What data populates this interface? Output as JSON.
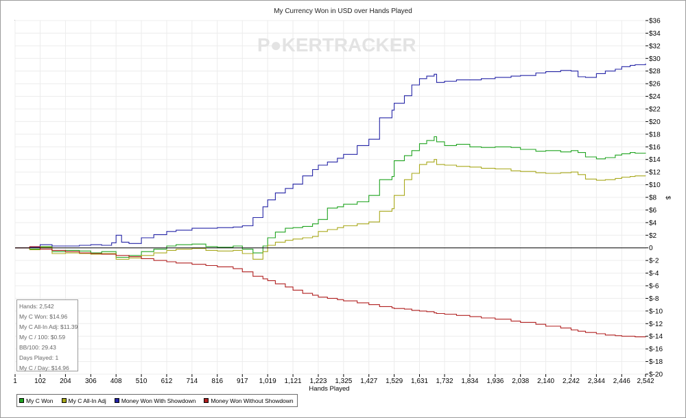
{
  "window": {},
  "watermark": {
    "text_a": "P",
    "text_b": "KERTRACKER",
    "color": "#e3e3e3"
  },
  "stats": [
    "Hands: 2,542",
    "My C Won: $14.96",
    "My C All-In Adj: $11.39",
    "My C / 100: $0.59",
    "BB/100: 29.43",
    "Days Played: 1",
    "My C / Day: $14.96"
  ],
  "chart_data": {
    "type": "line",
    "title": "My Currency Won in USD over Hands Played",
    "xlabel": "Hands Played",
    "ylabel": "$",
    "xlim": [
      1,
      2542
    ],
    "ylim": [
      -20,
      36
    ],
    "x_ticks": [
      "1",
      "102",
      "204",
      "306",
      "408",
      "510",
      "612",
      "714",
      "816",
      "917",
      "1,019",
      "1,121",
      "1,223",
      "1,325",
      "1,427",
      "1,529",
      "1,631",
      "1,732",
      "1,834",
      "1,936",
      "2,038",
      "2,140",
      "2,242",
      "2,344",
      "2,446",
      "2,542"
    ],
    "x_tick_values": [
      1,
      102,
      204,
      306,
      408,
      510,
      612,
      714,
      816,
      917,
      1019,
      1121,
      1223,
      1325,
      1427,
      1529,
      1631,
      1732,
      1834,
      1936,
      2038,
      2140,
      2242,
      2344,
      2446,
      2542
    ],
    "y_ticks": [
      "$36",
      "$34",
      "$32",
      "$30",
      "$28",
      "$26",
      "$24",
      "$22",
      "$20",
      "$18",
      "$16",
      "$14",
      "$12",
      "$10",
      "$8",
      "$6",
      "$4",
      "$2",
      "0",
      "$-2",
      "$-4",
      "$-6",
      "$-8",
      "$-10",
      "$-12",
      "$-14",
      "$-16",
      "$-18",
      "$-20"
    ],
    "y_tick_values": [
      36,
      34,
      32,
      30,
      28,
      26,
      24,
      22,
      20,
      18,
      16,
      14,
      12,
      10,
      8,
      6,
      4,
      2,
      0,
      -2,
      -4,
      -6,
      -8,
      -10,
      -12,
      -14,
      -16,
      -18,
      -20
    ],
    "grid": true,
    "legend_position": "bottom-left",
    "series": [
      {
        "name": "My C Won",
        "color": "#1fa31f",
        "points": [
          [
            1,
            0
          ],
          [
            60,
            -0.2
          ],
          [
            102,
            0.2
          ],
          [
            150,
            -0.6
          ],
          [
            204,
            -0.4
          ],
          [
            260,
            -0.5
          ],
          [
            306,
            -0.8
          ],
          [
            350,
            -0.6
          ],
          [
            408,
            -1.5
          ],
          [
            460,
            -1.2
          ],
          [
            510,
            -0.6
          ],
          [
            560,
            -0.2
          ],
          [
            612,
            0.3
          ],
          [
            650,
            0.5
          ],
          [
            714,
            0.6
          ],
          [
            770,
            0.2
          ],
          [
            816,
            0.1
          ],
          [
            880,
            0.3
          ],
          [
            917,
            -0.2
          ],
          [
            960,
            -0.8
          ],
          [
            1000,
            0.3
          ],
          [
            1019,
            1.6
          ],
          [
            1050,
            2.5
          ],
          [
            1090,
            3.1
          ],
          [
            1121,
            3.2
          ],
          [
            1160,
            3.4
          ],
          [
            1200,
            3.8
          ],
          [
            1223,
            4.5
          ],
          [
            1260,
            6.3
          ],
          [
            1300,
            6.5
          ],
          [
            1325,
            6.9
          ],
          [
            1380,
            7.3
          ],
          [
            1427,
            8.3
          ],
          [
            1470,
            10.8
          ],
          [
            1520,
            11.3
          ],
          [
            1529,
            13.8
          ],
          [
            1570,
            14.6
          ],
          [
            1600,
            15.4
          ],
          [
            1631,
            16.5
          ],
          [
            1660,
            17.0
          ],
          [
            1690,
            17.6
          ],
          [
            1700,
            16.8
          ],
          [
            1732,
            16.2
          ],
          [
            1780,
            16.4
          ],
          [
            1834,
            16.0
          ],
          [
            1880,
            15.9
          ],
          [
            1936,
            16.0
          ],
          [
            2000,
            15.9
          ],
          [
            2038,
            15.6
          ],
          [
            2100,
            15.3
          ],
          [
            2140,
            15.4
          ],
          [
            2200,
            15.2
          ],
          [
            2242,
            15.4
          ],
          [
            2270,
            15.1
          ],
          [
            2300,
            14.4
          ],
          [
            2344,
            14.1
          ],
          [
            2380,
            14.3
          ],
          [
            2420,
            14.7
          ],
          [
            2446,
            14.9
          ],
          [
            2480,
            15.1
          ],
          [
            2500,
            15.0
          ],
          [
            2542,
            14.96
          ]
        ]
      },
      {
        "name": "My C All-In Adj",
        "color": "#a8a81a",
        "points": [
          [
            1,
            0
          ],
          [
            60,
            -0.3
          ],
          [
            102,
            0.1
          ],
          [
            150,
            -0.9
          ],
          [
            204,
            -0.8
          ],
          [
            260,
            -0.9
          ],
          [
            306,
            -1.0
          ],
          [
            350,
            -0.9
          ],
          [
            408,
            -1.8
          ],
          [
            460,
            -1.6
          ],
          [
            510,
            -1.2
          ],
          [
            560,
            -0.8
          ],
          [
            612,
            -0.4
          ],
          [
            650,
            -0.2
          ],
          [
            714,
            -0.1
          ],
          [
            770,
            -0.4
          ],
          [
            816,
            -0.5
          ],
          [
            880,
            -0.4
          ],
          [
            917,
            -0.9
          ],
          [
            960,
            -1.8
          ],
          [
            1000,
            -0.6
          ],
          [
            1019,
            0.4
          ],
          [
            1050,
            0.9
          ],
          [
            1090,
            1.2
          ],
          [
            1121,
            1.4
          ],
          [
            1160,
            1.6
          ],
          [
            1200,
            1.8
          ],
          [
            1223,
            2.6
          ],
          [
            1260,
            2.9
          ],
          [
            1300,
            3.2
          ],
          [
            1325,
            3.5
          ],
          [
            1380,
            3.8
          ],
          [
            1427,
            4.1
          ],
          [
            1470,
            5.8
          ],
          [
            1520,
            6.2
          ],
          [
            1529,
            8.3
          ],
          [
            1570,
            10.8
          ],
          [
            1600,
            11.8
          ],
          [
            1631,
            13.2
          ],
          [
            1660,
            13.6
          ],
          [
            1690,
            14.0
          ],
          [
            1700,
            13.2
          ],
          [
            1732,
            13.1
          ],
          [
            1780,
            12.9
          ],
          [
            1834,
            12.8
          ],
          [
            1880,
            12.6
          ],
          [
            1936,
            12.5
          ],
          [
            2000,
            12.2
          ],
          [
            2038,
            12.1
          ],
          [
            2100,
            11.9
          ],
          [
            2140,
            11.8
          ],
          [
            2200,
            11.9
          ],
          [
            2242,
            12.0
          ],
          [
            2270,
            11.6
          ],
          [
            2300,
            10.9
          ],
          [
            2344,
            10.7
          ],
          [
            2380,
            10.8
          ],
          [
            2420,
            11.0
          ],
          [
            2446,
            11.2
          ],
          [
            2480,
            11.3
          ],
          [
            2500,
            11.4
          ],
          [
            2542,
            11.39
          ]
        ]
      },
      {
        "name": "Money Won With Showdown",
        "color": "#2323a6",
        "points": [
          [
            1,
            0
          ],
          [
            60,
            0.1
          ],
          [
            102,
            0.5
          ],
          [
            150,
            0.3
          ],
          [
            204,
            0.3
          ],
          [
            260,
            0.4
          ],
          [
            306,
            0.5
          ],
          [
            350,
            0.4
          ],
          [
            390,
            0.8
          ],
          [
            408,
            2.0
          ],
          [
            430,
            0.9
          ],
          [
            460,
            0.7
          ],
          [
            510,
            1.6
          ],
          [
            560,
            2.1
          ],
          [
            612,
            2.6
          ],
          [
            650,
            2.8
          ],
          [
            714,
            3.1
          ],
          [
            770,
            3.1
          ],
          [
            816,
            3.2
          ],
          [
            880,
            3.3
          ],
          [
            917,
            3.5
          ],
          [
            960,
            4.8
          ],
          [
            1000,
            6.5
          ],
          [
            1019,
            7.6
          ],
          [
            1050,
            8.7
          ],
          [
            1090,
            9.4
          ],
          [
            1121,
            10.1
          ],
          [
            1160,
            11.4
          ],
          [
            1200,
            12.4
          ],
          [
            1223,
            13.1
          ],
          [
            1260,
            13.6
          ],
          [
            1300,
            14.2
          ],
          [
            1325,
            14.8
          ],
          [
            1380,
            16.2
          ],
          [
            1427,
            17.2
          ],
          [
            1470,
            20.6
          ],
          [
            1520,
            21.8
          ],
          [
            1529,
            22.9
          ],
          [
            1570,
            24.1
          ],
          [
            1600,
            25.8
          ],
          [
            1631,
            26.8
          ],
          [
            1660,
            27.2
          ],
          [
            1690,
            27.5
          ],
          [
            1700,
            26.2
          ],
          [
            1732,
            26.4
          ],
          [
            1780,
            26.6
          ],
          [
            1834,
            26.6
          ],
          [
            1880,
            26.8
          ],
          [
            1936,
            27.0
          ],
          [
            2000,
            27.2
          ],
          [
            2038,
            27.3
          ],
          [
            2100,
            27.7
          ],
          [
            2140,
            27.9
          ],
          [
            2200,
            28.1
          ],
          [
            2242,
            28.0
          ],
          [
            2270,
            27.1
          ],
          [
            2300,
            27.0
          ],
          [
            2344,
            27.6
          ],
          [
            2380,
            28.0
          ],
          [
            2420,
            28.3
          ],
          [
            2446,
            28.7
          ],
          [
            2480,
            28.9
          ],
          [
            2500,
            29.0
          ],
          [
            2542,
            29.2
          ]
        ]
      },
      {
        "name": "Money Won Without Showdown",
        "color": "#b01f1f",
        "points": [
          [
            1,
            0
          ],
          [
            60,
            0.2
          ],
          [
            102,
            -0.2
          ],
          [
            150,
            -0.4
          ],
          [
            204,
            -0.6
          ],
          [
            260,
            -0.8
          ],
          [
            306,
            -0.9
          ],
          [
            350,
            -1.0
          ],
          [
            408,
            -1.2
          ],
          [
            460,
            -1.4
          ],
          [
            510,
            -1.7
          ],
          [
            560,
            -2.0
          ],
          [
            612,
            -2.2
          ],
          [
            650,
            -2.4
          ],
          [
            714,
            -2.6
          ],
          [
            770,
            -2.8
          ],
          [
            816,
            -3.0
          ],
          [
            880,
            -3.3
          ],
          [
            917,
            -3.8
          ],
          [
            960,
            -4.5
          ],
          [
            1000,
            -4.9
          ],
          [
            1019,
            -5.2
          ],
          [
            1050,
            -5.7
          ],
          [
            1090,
            -6.2
          ],
          [
            1121,
            -6.7
          ],
          [
            1160,
            -7.2
          ],
          [
            1200,
            -7.5
          ],
          [
            1223,
            -7.8
          ],
          [
            1260,
            -8.0
          ],
          [
            1300,
            -8.2
          ],
          [
            1325,
            -8.4
          ],
          [
            1380,
            -8.7
          ],
          [
            1427,
            -9.0
          ],
          [
            1470,
            -9.3
          ],
          [
            1520,
            -9.5
          ],
          [
            1529,
            -9.6
          ],
          [
            1570,
            -9.7
          ],
          [
            1600,
            -9.9
          ],
          [
            1631,
            -10.0
          ],
          [
            1660,
            -10.1
          ],
          [
            1690,
            -10.3
          ],
          [
            1700,
            -10.4
          ],
          [
            1732,
            -10.5
          ],
          [
            1780,
            -10.7
          ],
          [
            1834,
            -10.9
          ],
          [
            1880,
            -11.1
          ],
          [
            1936,
            -11.3
          ],
          [
            2000,
            -11.6
          ],
          [
            2038,
            -11.8
          ],
          [
            2100,
            -12.1
          ],
          [
            2140,
            -12.4
          ],
          [
            2200,
            -12.7
          ],
          [
            2242,
            -13.0
          ],
          [
            2270,
            -13.2
          ],
          [
            2300,
            -13.4
          ],
          [
            2344,
            -13.6
          ],
          [
            2380,
            -13.8
          ],
          [
            2420,
            -13.9
          ],
          [
            2446,
            -14.0
          ],
          [
            2480,
            -14.0
          ],
          [
            2500,
            -14.1
          ],
          [
            2542,
            -14.0
          ]
        ]
      }
    ]
  }
}
